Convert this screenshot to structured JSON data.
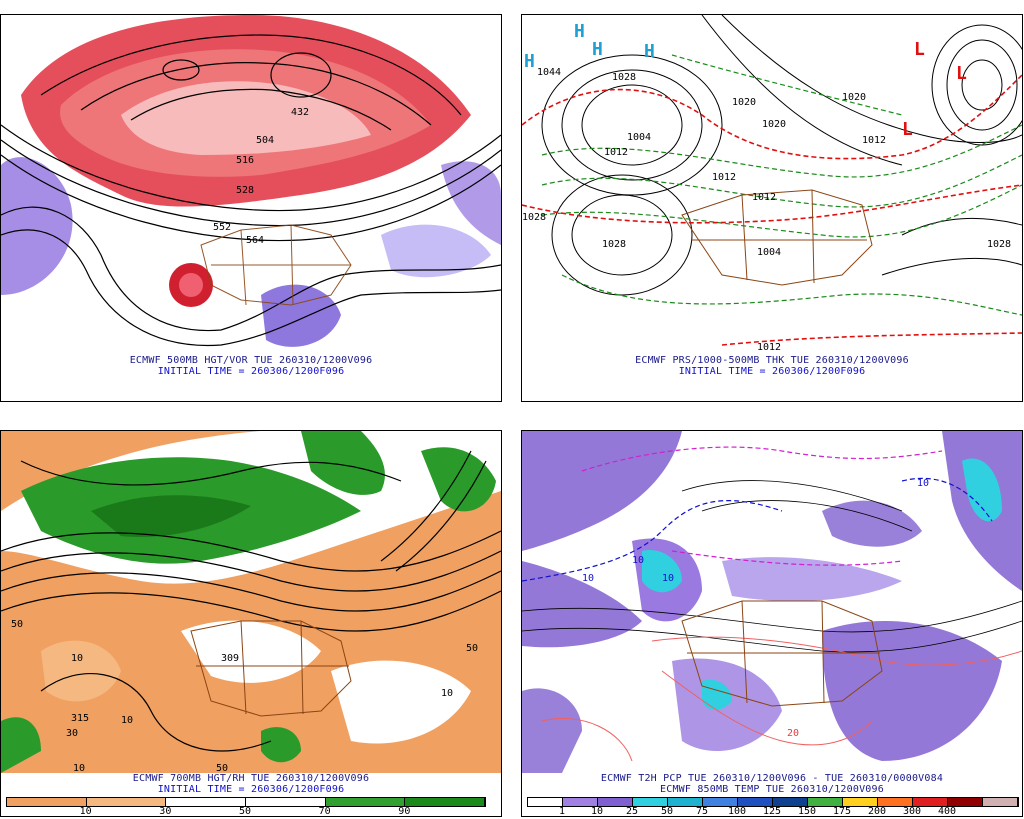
{
  "panels": {
    "tl": {
      "caption": "ECMWF 500MB HGT/VOR TUE 260310/1200V096",
      "init": "INITIAL TIME = 260306/1200F096",
      "contour_labels": [
        "432",
        "504",
        "516",
        "528",
        "552",
        "564"
      ]
    },
    "tr": {
      "caption": "ECMWF PRS/1000-500MB THK TUE 260310/1200V096",
      "init": "INITIAL TIME = 260306/1200F096",
      "contour_labels": [
        "1044",
        "1028",
        "1004",
        "1012",
        "1020",
        "1020",
        "1012",
        "1012",
        "1004",
        "1012",
        "1028",
        "1028",
        "1028",
        "1020",
        "1012"
      ],
      "highs": [
        "H",
        "H",
        "H",
        "H"
      ],
      "lows": [
        "L",
        "L",
        "L"
      ]
    },
    "bl": {
      "caption": "ECMWF 700MB HGT/RH TUE 260310/1200V096",
      "init": "INITIAL TIME = 260306/1200F096",
      "contour_labels": [
        "50",
        "10",
        "315",
        "10",
        "30",
        "10",
        "50",
        "309",
        "50",
        "10"
      ],
      "colorbar": {
        "colors": [
          "#f0a060",
          "#f5b880",
          "#ffffff",
          "#ffffff",
          "#30a030",
          "#1a8a1a"
        ],
        "ticks": [
          "10",
          "30",
          "50",
          "70",
          "90"
        ]
      }
    },
    "br": {
      "caption": "ECMWF T2H PCP TUE 260310/1200V096 - TUE 260310/0000V084",
      "caption2": "ECMWF 850MB TEMP TUE 260310/1200V096",
      "contour_labels": [
        "10",
        "10",
        "10",
        "20",
        "10"
      ],
      "colorbar": {
        "colors": [
          "#ffffff",
          "#a080e0",
          "#8060d0",
          "#30d0e0",
          "#20b0d0",
          "#4080e0",
          "#2050c0",
          "#104090",
          "#40b040",
          "#ffd020",
          "#ff7020",
          "#e02020",
          "#900000",
          "#d0b0b0"
        ],
        "ticks": [
          "1",
          "10",
          "25",
          "50",
          "75",
          "100",
          "125",
          "150",
          "175",
          "200",
          "300",
          "400"
        ]
      }
    }
  }
}
